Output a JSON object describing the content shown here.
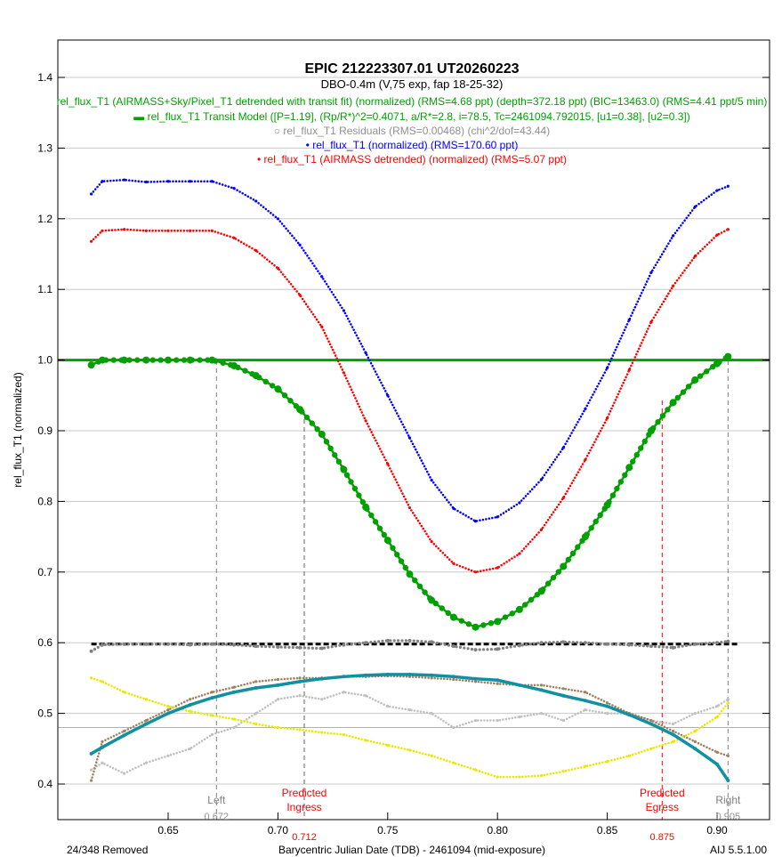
{
  "chart_data": {
    "type": "scatter",
    "title": "EPIC 212223307.01  UT20260223",
    "subtitle": "DBO-0.4m (V,75 exp, fap 18-25-32)",
    "xlabel": "Barycentric Julian Date (TDB) - 2461094 (mid-exposure)",
    "ylabel": "rel_flux_T1 (normalized)",
    "xlim": [
      0.5998,
      0.924
    ],
    "ylim": [
      0.35,
      1.453
    ],
    "xticks": [
      "0.65",
      "0.70",
      "0.75",
      "0.80",
      "0.85",
      "0.90"
    ],
    "xtick_values": [
      0.65,
      0.7,
      0.75,
      0.8,
      0.85,
      0.9
    ],
    "yticks": [
      "0.4",
      "0.5",
      "0.6",
      "0.7",
      "0.8",
      "0.9",
      "1.0",
      "1.1",
      "1.2",
      "1.3",
      "1.4"
    ],
    "ytick_values": [
      0.4,
      0.5,
      0.6,
      0.7,
      0.8,
      0.9,
      1.0,
      1.1,
      1.2,
      1.3,
      1.4
    ],
    "grid": true,
    "legend_placement": "top-center",
    "legend": [
      {
        "label": "rel_flux_T1 (AIRMASS+Sky/Pixel_T1 detrended with transit fit) (normalized) (RMS=4.68 ppt) (depth=372.18 ppt) (BIC=13463.0) (RMS=4.41 ppt/5 min)",
        "color": "#00a000",
        "marker": ""
      },
      {
        "label": "rel_flux_T1 Transit Model ([P=1.19], (Rp/R*)^2=0.4071, a/R*=2.8, i=78.5, Tc=2461094.792015, [u1=0.38], [u2=0.3])",
        "color": "#00a000",
        "marker": "▬"
      },
      {
        "label": "rel_flux_T1 Residuals (RMS=0.00468) (chi^2/dof=43.44)",
        "color": "#909090",
        "marker": "○"
      },
      {
        "label": "rel_flux_T1 (normalized) (RMS=170.60 ppt)",
        "color": "#0000ff",
        "marker": "•"
      },
      {
        "label": "rel_flux_T1 (AIRMASS detrended) (normalized) (RMS=5.07 ppt)",
        "color": "#ff0000",
        "marker": "•"
      }
    ],
    "x": [
      0.615,
      0.62,
      0.63,
      0.64,
      0.65,
      0.66,
      0.67,
      0.68,
      0.69,
      0.7,
      0.71,
      0.72,
      0.73,
      0.74,
      0.75,
      0.76,
      0.77,
      0.78,
      0.79,
      0.8,
      0.81,
      0.82,
      0.83,
      0.84,
      0.85,
      0.86,
      0.87,
      0.88,
      0.89,
      0.9,
      0.905
    ],
    "series": [
      {
        "name": "detrended",
        "color": "#00a000",
        "size": 4,
        "values": [
          0.993,
          1.0,
          1.0,
          1.0,
          1.0,
          1.0,
          1.0,
          0.992,
          0.978,
          0.959,
          0.93,
          0.895,
          0.845,
          0.792,
          0.745,
          0.697,
          0.66,
          0.636,
          0.622,
          0.63,
          0.647,
          0.673,
          0.708,
          0.75,
          0.795,
          0.848,
          0.9,
          0.94,
          0.972,
          0.995,
          1.005
        ]
      },
      {
        "name": "normalized",
        "color": "#0000ff",
        "size": 1.6,
        "values": [
          1.235,
          1.253,
          1.255,
          1.252,
          1.253,
          1.253,
          1.253,
          1.243,
          1.225,
          1.2,
          1.163,
          1.118,
          1.07,
          1.01,
          0.95,
          0.89,
          0.83,
          0.79,
          0.772,
          0.778,
          0.798,
          0.831,
          0.876,
          0.931,
          0.989,
          1.057,
          1.124,
          1.176,
          1.217,
          1.24,
          1.246
        ]
      },
      {
        "name": "airmass-detrended",
        "color": "#ff0000",
        "size": 1.6,
        "values": [
          1.168,
          1.183,
          1.185,
          1.183,
          1.183,
          1.183,
          1.183,
          1.173,
          1.155,
          1.13,
          1.092,
          1.047,
          0.982,
          0.914,
          0.853,
          0.791,
          0.743,
          0.712,
          0.7,
          0.706,
          0.726,
          0.76,
          0.805,
          0.859,
          0.918,
          0.986,
          1.054,
          1.105,
          1.147,
          1.177,
          1.185
        ]
      },
      {
        "name": "residuals",
        "color": "#808080",
        "size": 2,
        "values": [
          0.588,
          0.597,
          0.598,
          0.598,
          0.598,
          0.597,
          0.598,
          0.597,
          0.595,
          0.594,
          0.593,
          0.592,
          0.597,
          0.6,
          0.603,
          0.603,
          0.601,
          0.595,
          0.59,
          0.591,
          0.596,
          0.6,
          0.601,
          0.6,
          0.598,
          0.597,
          0.595,
          0.593,
          0.598,
          0.6,
          0.602
        ]
      },
      {
        "name": "airmass",
        "color": "#e8e800",
        "size": 1.6,
        "values": [
          0.55,
          0.545,
          0.53,
          0.52,
          0.51,
          0.503,
          0.497,
          0.492,
          0.485,
          0.48,
          0.477,
          0.473,
          0.47,
          0.462,
          0.455,
          0.448,
          0.44,
          0.43,
          0.42,
          0.41,
          0.41,
          0.412,
          0.418,
          0.425,
          0.432,
          0.44,
          0.45,
          0.46,
          0.475,
          0.495,
          0.515
        ]
      },
      {
        "name": "sky",
        "color": "#a08060",
        "size": 1.6,
        "values": [
          0.405,
          0.46,
          0.475,
          0.49,
          0.505,
          0.52,
          0.53,
          0.537,
          0.545,
          0.548,
          0.55,
          0.55,
          0.552,
          0.552,
          0.553,
          0.552,
          0.55,
          0.548,
          0.545,
          0.542,
          0.54,
          0.54,
          0.535,
          0.53,
          0.515,
          0.5,
          0.49,
          0.475,
          0.46,
          0.445,
          0.44
        ]
      },
      {
        "name": "comparison",
        "color": "#c0c0c0",
        "size": 1.6,
        "values": [
          0.42,
          0.43,
          0.415,
          0.43,
          0.44,
          0.45,
          0.47,
          0.48,
          0.5,
          0.52,
          0.525,
          0.52,
          0.53,
          0.525,
          0.51,
          0.505,
          0.5,
          0.48,
          0.49,
          0.49,
          0.495,
          0.5,
          0.49,
          0.505,
          0.5,
          0.5,
          0.49,
          0.485,
          0.5,
          0.51,
          0.52
        ]
      },
      {
        "name": "fit",
        "color": "#1090a0",
        "size": 2,
        "line": true,
        "values": [
          0.443,
          0.452,
          0.469,
          0.485,
          0.5,
          0.512,
          0.522,
          0.53,
          0.536,
          0.54,
          0.545,
          0.549,
          0.552,
          0.554,
          0.555,
          0.555,
          0.554,
          0.552,
          0.549,
          0.547,
          0.54,
          0.533,
          0.525,
          0.518,
          0.51,
          0.498,
          0.485,
          0.47,
          0.45,
          0.428,
          0.405
        ]
      }
    ],
    "model_baseline": 1.0,
    "residual_baseline": 0.598,
    "reference_line": 0.48,
    "markers": [
      {
        "label1": "Left",
        "value_label": "0.672",
        "x": 0.672,
        "color": "#808080"
      },
      {
        "label1": "Predicted",
        "label2": "Ingress",
        "value_label": "0.712",
        "x": 0.712,
        "color": "#ff0000"
      },
      {
        "label1": "Predicted",
        "label2": "Egress",
        "value_label": "0.875",
        "x": 0.875,
        "color": "#ff0000"
      },
      {
        "label1": "Right",
        "value_label": "0.905",
        "x": 0.905,
        "color": "#808080"
      }
    ]
  },
  "footer": {
    "removed": "24/348 Removed",
    "version": "AIJ 5.5.1.00"
  }
}
